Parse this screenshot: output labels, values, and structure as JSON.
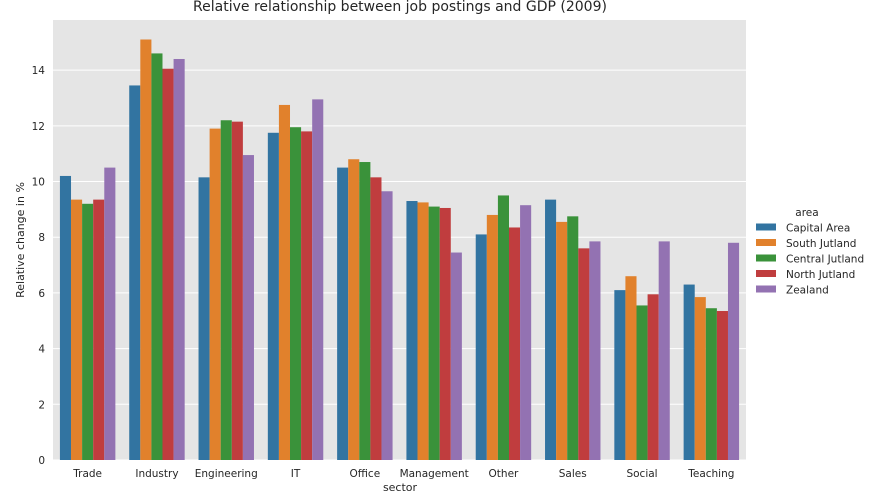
{
  "chart_data": {
    "type": "bar",
    "title": "Relative relationship between job postings and GDP (2009)",
    "xlabel": "sector",
    "ylabel": "Relative change in %",
    "ylim": [
      0,
      15.8
    ],
    "yticks": [
      0,
      2,
      4,
      6,
      8,
      10,
      12,
      14
    ],
    "grid": true,
    "legend": {
      "title": "area",
      "placement": "right"
    },
    "categories": [
      "Trade",
      "Industry",
      "Engineering",
      "IT",
      "Office",
      "Management",
      "Other",
      "Sales",
      "Social",
      "Teaching"
    ],
    "series": [
      {
        "name": "Capital Area",
        "color": "#3274a1",
        "values": [
          10.2,
          13.45,
          10.15,
          11.75,
          10.5,
          9.3,
          8.1,
          9.35,
          6.1,
          6.3
        ]
      },
      {
        "name": "South Jutland",
        "color": "#e1812c",
        "values": [
          9.35,
          15.1,
          11.9,
          12.75,
          10.8,
          9.25,
          8.8,
          8.55,
          6.6,
          5.85
        ]
      },
      {
        "name": "Central Jutland",
        "color": "#3a923a",
        "values": [
          9.2,
          14.6,
          12.2,
          11.95,
          10.7,
          9.1,
          9.5,
          8.75,
          5.55,
          5.45
        ]
      },
      {
        "name": "North Jutland",
        "color": "#c03d3e",
        "values": [
          9.35,
          14.05,
          12.15,
          11.8,
          10.15,
          9.05,
          8.35,
          7.6,
          5.95,
          5.35
        ]
      },
      {
        "name": "Zealand",
        "color": "#9372b2",
        "values": [
          10.5,
          14.4,
          10.95,
          12.95,
          9.65,
          7.45,
          9.15,
          7.85,
          7.85,
          7.8
        ]
      }
    ],
    "colors": {
      "plot_background": "#e5e5e5",
      "grid": "#ffffff",
      "text": "#262626"
    }
  }
}
